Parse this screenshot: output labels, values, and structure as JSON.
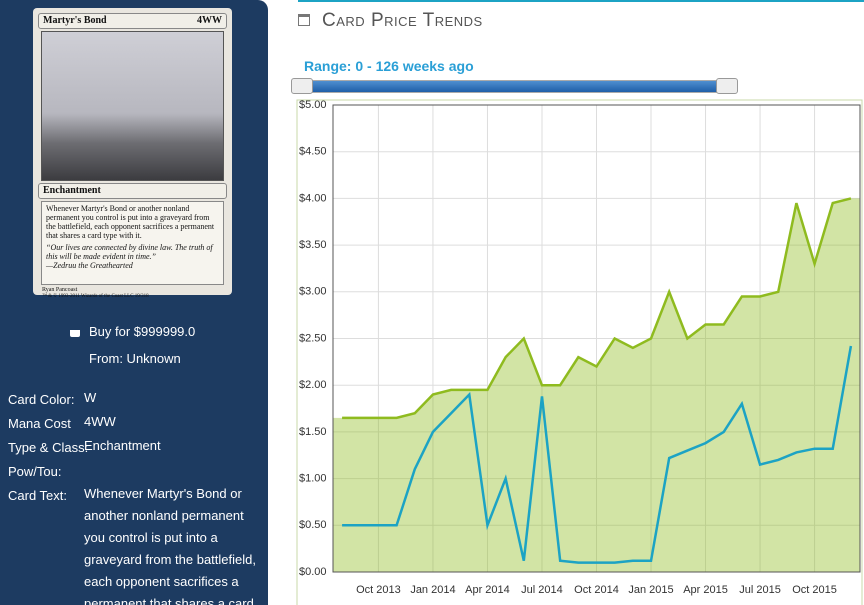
{
  "card": {
    "name": "Martyr's Bond",
    "mana": "4WW",
    "type": "Enchantment",
    "rules": "Whenever Martyr's Bond or another nonland permanent you control is put into a graveyard from the battlefield, each opponent sacrifices a permanent that shares a card type with it.",
    "flavor": "“Our lives are connected by divine law. The truth of this will be made evident in time.”",
    "flavor_author": "—Zedruu the Greathearted",
    "artist": "Ryan Pancoast",
    "copyright": "™ & © 1993-2011 Wizards of the Coast LLC 19/318"
  },
  "buy": {
    "price": "Buy for $999999.0",
    "source": "From: Unknown"
  },
  "details": [
    [
      "Card Color:",
      "W"
    ],
    [
      "Mana Cost",
      "4WW"
    ],
    [
      "Type & Class:",
      "Enchantment"
    ],
    [
      "Pow/Tou:"
    ],
    [
      "Card Text:",
      "Whenever Martyr's Bond or another nonland permanent you control is put into a graveyard from the battlefield, each opponent sacrifices a permanent that shares a card"
    ]
  ],
  "chart_data": {
    "type": "line",
    "title": "Card Price Trends",
    "range_label": "Range: 0 - 126 weeks ago",
    "categories": [
      null,
      null,
      "Oct 2013",
      null,
      null,
      "Jan 2014",
      null,
      null,
      "Apr 2014",
      null,
      null,
      "Jul 2014",
      null,
      null,
      "Oct 2014",
      null,
      null,
      "Jan 2015",
      null,
      null,
      "Apr 2015",
      null,
      null,
      "Jul 2015",
      null,
      null,
      "Oct 2015",
      null,
      null
    ],
    "series": [
      {
        "color": "#8fbb1f",
        "area": true,
        "values": [
          1.65,
          1.65,
          1.65,
          1.65,
          1.7,
          1.9,
          1.95,
          1.95,
          1.95,
          2.3,
          2.5,
          2.0,
          2.0,
          2.3,
          2.2,
          2.5,
          2.4,
          2.5,
          3.0,
          2.5,
          2.65,
          2.65,
          2.95,
          2.95,
          3.0,
          3.95,
          3.3,
          3.95,
          4.0
        ]
      },
      {
        "color": "#1ca3c4",
        "values": [
          0.5,
          0.5,
          0.5,
          0.5,
          1.1,
          1.5,
          1.7,
          1.9,
          0.5,
          1.0,
          0.12,
          1.88,
          0.12,
          0.1,
          0.1,
          0.1,
          0.12,
          0.12,
          1.22,
          1.3,
          1.38,
          1.5,
          1.8,
          1.15,
          1.2,
          1.28,
          1.32,
          1.32,
          2.42
        ]
      }
    ],
    "ylim": [
      0,
      5
    ],
    "yticks": [
      {
        "value": 0,
        "label": "$0.00"
      },
      {
        "value": 0.5,
        "label": "$0.50"
      },
      {
        "value": 1,
        "label": "$1.00"
      },
      {
        "value": 1.5,
        "label": "$1.50"
      },
      {
        "value": 2,
        "label": "$2.00"
      },
      {
        "value": 2.5,
        "label": "$2.50"
      },
      {
        "value": 3,
        "label": "$3.00"
      },
      {
        "value": 3.5,
        "label": "$3.50"
      },
      {
        "value": 4,
        "label": "$4.00"
      },
      {
        "value": 4.5,
        "label": "$4.50"
      },
      {
        "value": 5,
        "label": "$5.00"
      }
    ],
    "grid": true
  }
}
